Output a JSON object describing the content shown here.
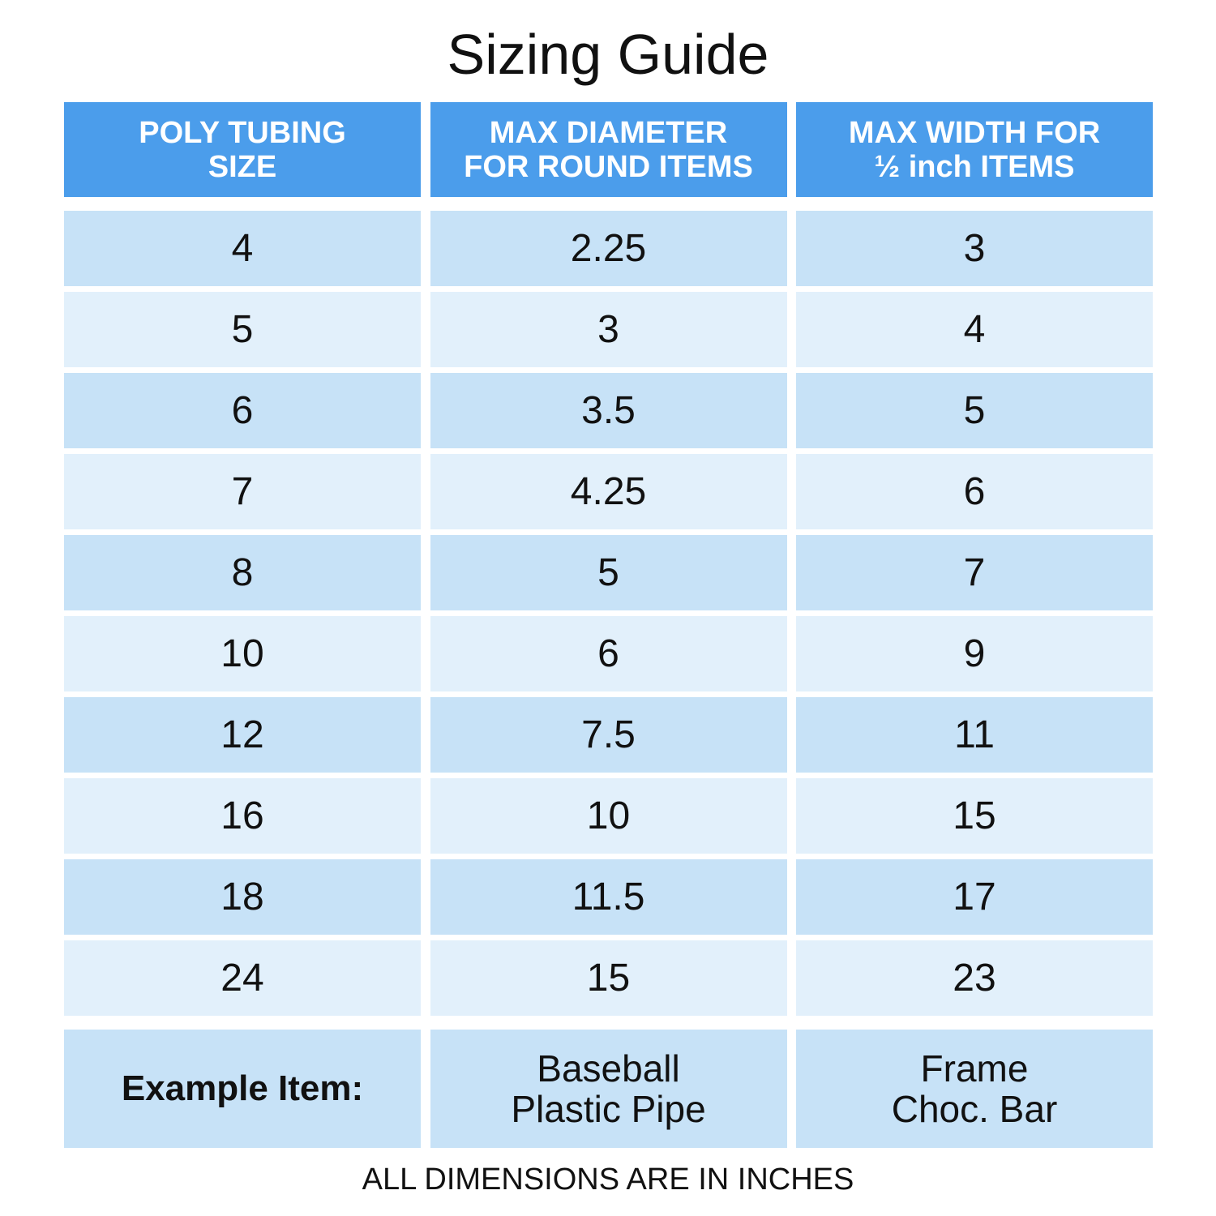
{
  "title": "Sizing Guide",
  "headers": [
    "POLY TUBING\nSIZE",
    "MAX DIAMETER\nFOR ROUND ITEMS",
    "MAX WIDTH FOR\n½ inch ITEMS"
  ],
  "rows": [
    [
      "4",
      "2.25",
      "3"
    ],
    [
      "5",
      "3",
      "4"
    ],
    [
      "6",
      "3.5",
      "5"
    ],
    [
      "7",
      "4.25",
      "6"
    ],
    [
      "8",
      "5",
      "7"
    ],
    [
      "10",
      "6",
      "9"
    ],
    [
      "12",
      "7.5",
      "11"
    ],
    [
      "16",
      "10",
      "15"
    ],
    [
      "18",
      "11.5",
      "17"
    ],
    [
      "24",
      "15",
      "23"
    ]
  ],
  "example": [
    "Example Item:",
    "Baseball\nPlastic Pipe",
    "Frame\nChoc. Bar"
  ],
  "footer": "ALL DIMENSIONS ARE IN INCHES",
  "colors": {
    "header": "#4B9DEB",
    "row_dark": "#C7E2F7",
    "row_light": "#E2F0FB"
  }
}
